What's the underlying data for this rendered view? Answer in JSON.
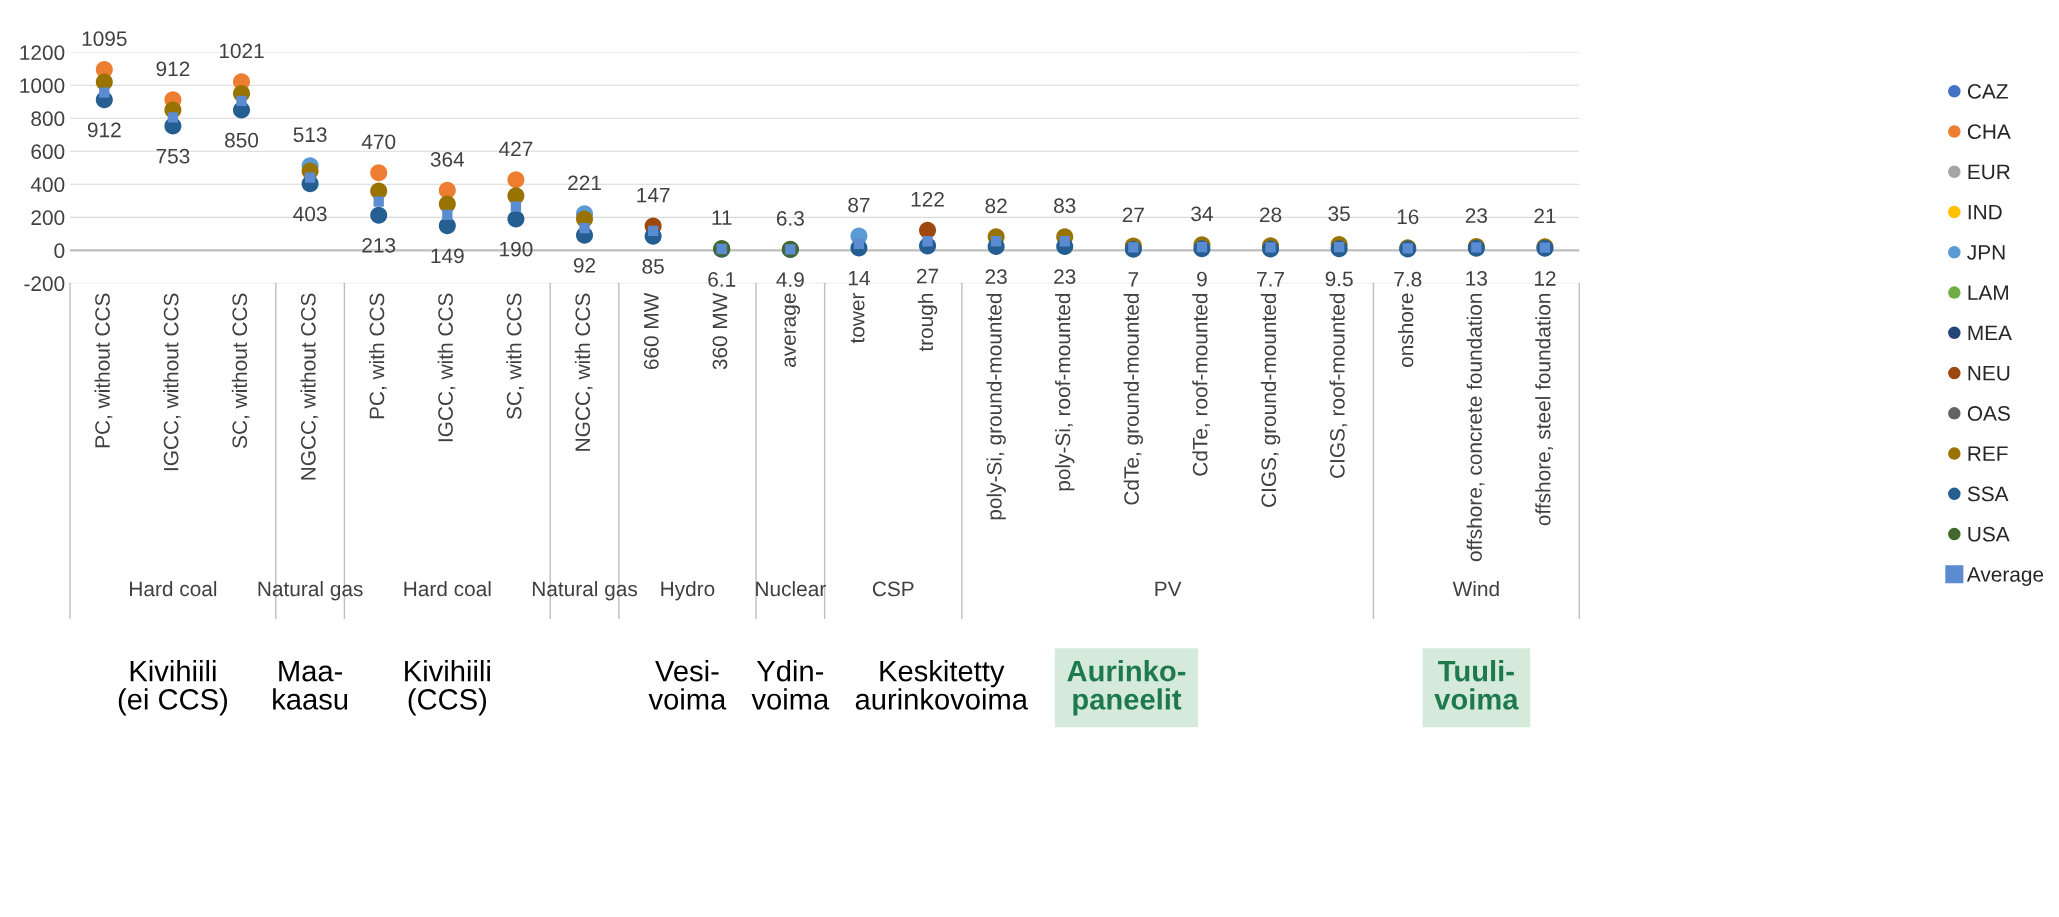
{
  "chart_data": {
    "type": "scatter",
    "categories": [
      "PC, without CCS",
      "IGCC, without CCS",
      "SC, without CCS",
      "NGCC, without CCS",
      "PC, with CCS",
      "IGCC, with CCS",
      "SC, with CCS",
      "NGCC, with CCS",
      "660 MW",
      "360 MW",
      "average",
      "tower",
      "trough",
      "poly-Si, ground-mounted",
      "poly-Si, roof-mounted",
      "CdTe, ground-mounted",
      "CdTe, roof-mounted",
      "CIGS, ground-mounted",
      "CIGS, roof-mounted",
      "onshore",
      "offshore, concrete foundation",
      "offshore, steel foundation"
    ],
    "series": [
      {
        "name": "CAZ",
        "color": "#4472c4",
        "values": [
          null,
          null,
          null,
          null,
          null,
          null,
          null,
          null,
          null,
          null,
          null,
          null,
          null,
          null,
          null,
          null,
          null,
          null,
          null,
          null,
          null,
          null
        ]
      },
      {
        "name": "CHA",
        "color": "#ed7d31",
        "values": [
          1095,
          912,
          1021,
          null,
          470,
          364,
          427,
          null,
          null,
          null,
          null,
          null,
          null,
          null,
          null,
          null,
          null,
          null,
          null,
          null,
          null,
          null
        ],
        "value_labels": [
          "1095",
          "912",
          "1021",
          null,
          "470",
          "364",
          "427",
          null,
          null,
          null,
          null,
          null,
          null,
          null,
          null,
          null,
          null,
          null,
          null,
          null,
          null,
          null
        ]
      },
      {
        "name": "EUR",
        "color": "#a5a5a5",
        "values": [
          null,
          null,
          null,
          null,
          null,
          null,
          null,
          null,
          null,
          null,
          null,
          null,
          null,
          null,
          null,
          null,
          null,
          null,
          null,
          null,
          null,
          null
        ]
      },
      {
        "name": "IND",
        "color": "#ffc000",
        "values": [
          null,
          null,
          null,
          null,
          null,
          null,
          null,
          null,
          null,
          null,
          null,
          null,
          null,
          null,
          null,
          null,
          null,
          null,
          null,
          null,
          null,
          null
        ]
      },
      {
        "name": "JPN",
        "color": "#5b9bd5",
        "values": [
          null,
          null,
          null,
          513,
          null,
          null,
          null,
          221,
          null,
          null,
          null,
          87,
          null,
          null,
          null,
          null,
          null,
          null,
          null,
          null,
          null,
          null
        ],
        "value_labels": [
          null,
          null,
          null,
          "513",
          null,
          null,
          null,
          "221",
          null,
          null,
          null,
          "87",
          null,
          null,
          null,
          null,
          null,
          null,
          null,
          null,
          null,
          null
        ]
      },
      {
        "name": "LAM",
        "color": "#70ad47",
        "values": [
          null,
          null,
          null,
          null,
          null,
          null,
          null,
          null,
          null,
          null,
          null,
          null,
          null,
          null,
          null,
          null,
          null,
          null,
          null,
          null,
          null,
          null
        ]
      },
      {
        "name": "MEA",
        "color": "#264478",
        "values": [
          null,
          null,
          null,
          null,
          null,
          null,
          null,
          null,
          null,
          null,
          null,
          null,
          null,
          null,
          null,
          null,
          null,
          null,
          null,
          null,
          null,
          null
        ]
      },
      {
        "name": "NEU",
        "color": "#9e480e",
        "values": [
          null,
          null,
          null,
          null,
          null,
          null,
          null,
          null,
          147,
          null,
          null,
          null,
          122,
          null,
          null,
          null,
          null,
          null,
          null,
          null,
          null,
          null
        ],
        "value_labels": [
          null,
          null,
          null,
          null,
          null,
          null,
          null,
          null,
          "147",
          null,
          null,
          null,
          "122",
          null,
          null,
          null,
          null,
          null,
          null,
          null,
          null,
          null
        ]
      },
      {
        "name": "OAS",
        "color": "#636363",
        "values": [
          null,
          null,
          null,
          null,
          null,
          null,
          null,
          null,
          null,
          null,
          null,
          null,
          null,
          null,
          null,
          null,
          null,
          null,
          null,
          null,
          null,
          null
        ]
      },
      {
        "name": "REF",
        "color": "#997300",
        "values": [
          1020,
          850,
          950,
          480,
          360,
          280,
          330,
          190,
          null,
          null,
          null,
          null,
          null,
          82,
          83,
          27,
          34,
          28,
          35,
          16,
          23,
          21
        ],
        "value_labels": [
          null,
          null,
          null,
          null,
          null,
          null,
          null,
          null,
          null,
          null,
          null,
          null,
          null,
          "82",
          "83",
          "27",
          "34",
          "28",
          "35",
          "16",
          "23",
          "21"
        ]
      },
      {
        "name": "SSA",
        "color": "#255e91",
        "values": [
          912,
          753,
          850,
          403,
          213,
          149,
          190,
          92,
          85,
          6.1,
          4.9,
          14,
          27,
          23,
          23,
          7,
          9,
          7.7,
          9.5,
          7.8,
          13,
          12
        ],
        "value_labels": [
          "912",
          "753",
          "850",
          "403",
          "213",
          "149",
          "190",
          "92",
          "85",
          "6.1",
          "4.9",
          "14",
          "27",
          "23",
          "23",
          "7",
          "9",
          "7.7",
          "9.5",
          "7.8",
          "13",
          "12"
        ]
      },
      {
        "name": "USA",
        "color": "#43682b",
        "values": [
          null,
          null,
          null,
          null,
          null,
          null,
          null,
          null,
          null,
          11,
          6.3,
          null,
          null,
          null,
          null,
          null,
          null,
          null,
          null,
          null,
          null,
          null
        ],
        "value_labels": [
          null,
          null,
          null,
          null,
          null,
          null,
          null,
          null,
          null,
          "11",
          "6.3",
          null,
          null,
          null,
          null,
          null,
          null,
          null,
          null,
          null,
          null,
          null
        ]
      },
      {
        "name": "Average",
        "color": "#5b8bd0",
        "marker": "square",
        "values": [
          955,
          805,
          905,
          440,
          295,
          215,
          265,
          135,
          118,
          8,
          6,
          40,
          55,
          55,
          55,
          18,
          20,
          18,
          20,
          12,
          18,
          16
        ]
      }
    ],
    "ylim": [
      -200,
      1200
    ],
    "yticks": [
      -200,
      0,
      200,
      400,
      600,
      800,
      1000,
      1200
    ],
    "grid": "y",
    "legend": "right",
    "marker": "circle",
    "annotations": [
      "Hard coal",
      "Natural gas",
      "Hard coal",
      "Natural gas",
      "Hydro",
      "Nuclear",
      "CSP",
      "PV",
      "Wind",
      "Kivihiili\n(ei CCS)",
      "Maa-\nkaasu",
      "Kivihiili\n(CCS)",
      "Vesi-\nvoima",
      "Ydin-\nvoima",
      "Keskitetty\naurinkovoima",
      "Aurinko-\npaneelit",
      "Tuuli-\nvoima"
    ]
  }
}
